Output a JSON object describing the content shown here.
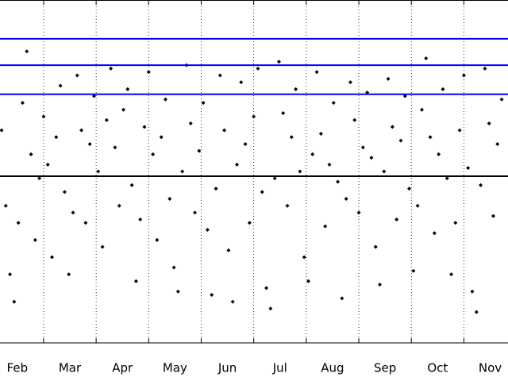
{
  "chart_data": {
    "type": "scatter",
    "x": [
      1.7,
      1.78,
      1.86,
      1.94,
      2.02,
      2.1,
      2.18,
      2.26,
      2.34,
      2.42,
      2.5,
      2.58,
      2.66,
      2.74,
      2.82,
      2.9,
      2.98,
      3.06,
      3.14,
      3.22,
      3.3,
      3.38,
      3.46,
      3.54,
      3.62,
      3.7,
      3.78,
      3.86,
      3.94,
      4.02,
      4.1,
      4.18,
      4.26,
      4.34,
      4.42,
      4.5,
      4.58,
      4.66,
      4.74,
      4.82,
      4.9,
      4.98,
      5.06,
      5.14,
      5.22,
      5.3,
      5.38,
      5.46,
      5.54,
      5.62,
      5.7,
      5.78,
      5.86,
      5.94,
      6.02,
      6.1,
      6.18,
      6.26,
      6.34,
      6.42,
      6.5,
      6.58,
      6.66,
      6.74,
      6.82,
      6.9,
      6.98,
      7.06,
      7.14,
      7.22,
      7.3,
      7.38,
      7.46,
      7.54,
      7.62,
      7.7,
      7.78,
      7.86,
      7.94,
      8.02,
      8.1,
      8.18,
      8.26,
      8.34,
      8.42,
      8.5,
      8.58,
      8.66,
      8.74,
      8.82,
      8.9,
      8.98,
      9.06,
      9.14,
      9.22,
      9.3,
      9.38,
      9.46,
      9.54,
      9.62,
      9.7,
      9.78,
      9.86,
      9.94,
      10.02,
      10.1,
      10.18,
      10.26,
      10.34,
      10.42,
      10.5,
      10.58,
      10.66,
      10.74,
      10.82,
      10.9,
      10.98,
      11.06,
      11.14,
      11.22
    ],
    "values": [
      62,
      40,
      20,
      12,
      35,
      70,
      85,
      55,
      30,
      48,
      66,
      52,
      25,
      60,
      75,
      44,
      20,
      38,
      78,
      62,
      35,
      58,
      72,
      50,
      28,
      65,
      80,
      57,
      40,
      68,
      74,
      46,
      18,
      36,
      63,
      79,
      55,
      30,
      60,
      71,
      42,
      22,
      15,
      50,
      81,
      64,
      38,
      56,
      70,
      33,
      14,
      45,
      78,
      62,
      27,
      12,
      52,
      76,
      58,
      35,
      66,
      80,
      44,
      16,
      10,
      48,
      82,
      67,
      40,
      60,
      74,
      50,
      25,
      18,
      55,
      79,
      61,
      34,
      52,
      70,
      47,
      13,
      42,
      76,
      65,
      38,
      57,
      73,
      54,
      28,
      17,
      50,
      77,
      63,
      36,
      59,
      72,
      45,
      21,
      40,
      68,
      83,
      60,
      32,
      55,
      74,
      48,
      20,
      35,
      62,
      78,
      51,
      15,
      9,
      46,
      80,
      64,
      37,
      58,
      71
    ],
    "color": "#000000",
    "xlim": [
      1.67,
      11.34
    ],
    "ylim": [
      0,
      100
    ],
    "xticks": [
      {
        "value": 2,
        "label": "Feb"
      },
      {
        "value": 3,
        "label": "Mar"
      },
      {
        "value": 4,
        "label": "Apr"
      },
      {
        "value": 5,
        "label": "May"
      },
      {
        "value": 6,
        "label": "Jun"
      },
      {
        "value": 7,
        "label": "Jul"
      },
      {
        "value": 8,
        "label": "Aug"
      },
      {
        "value": 9,
        "label": "Sep"
      },
      {
        "value": 10,
        "label": "Oct"
      },
      {
        "value": 11,
        "label": "Nov"
      }
    ],
    "xgrid": [
      2.5,
      3.5,
      4.5,
      5.5,
      6.5,
      7.5,
      8.5,
      9.5,
      10.5
    ],
    "reference_lines": [
      {
        "value": 88.7,
        "color": "#0000ff"
      },
      {
        "value": 81.0,
        "color": "#0000ff"
      },
      {
        "value": 72.5,
        "color": "#0000ff"
      },
      {
        "value": 48.6,
        "color": "#000000"
      }
    ]
  }
}
